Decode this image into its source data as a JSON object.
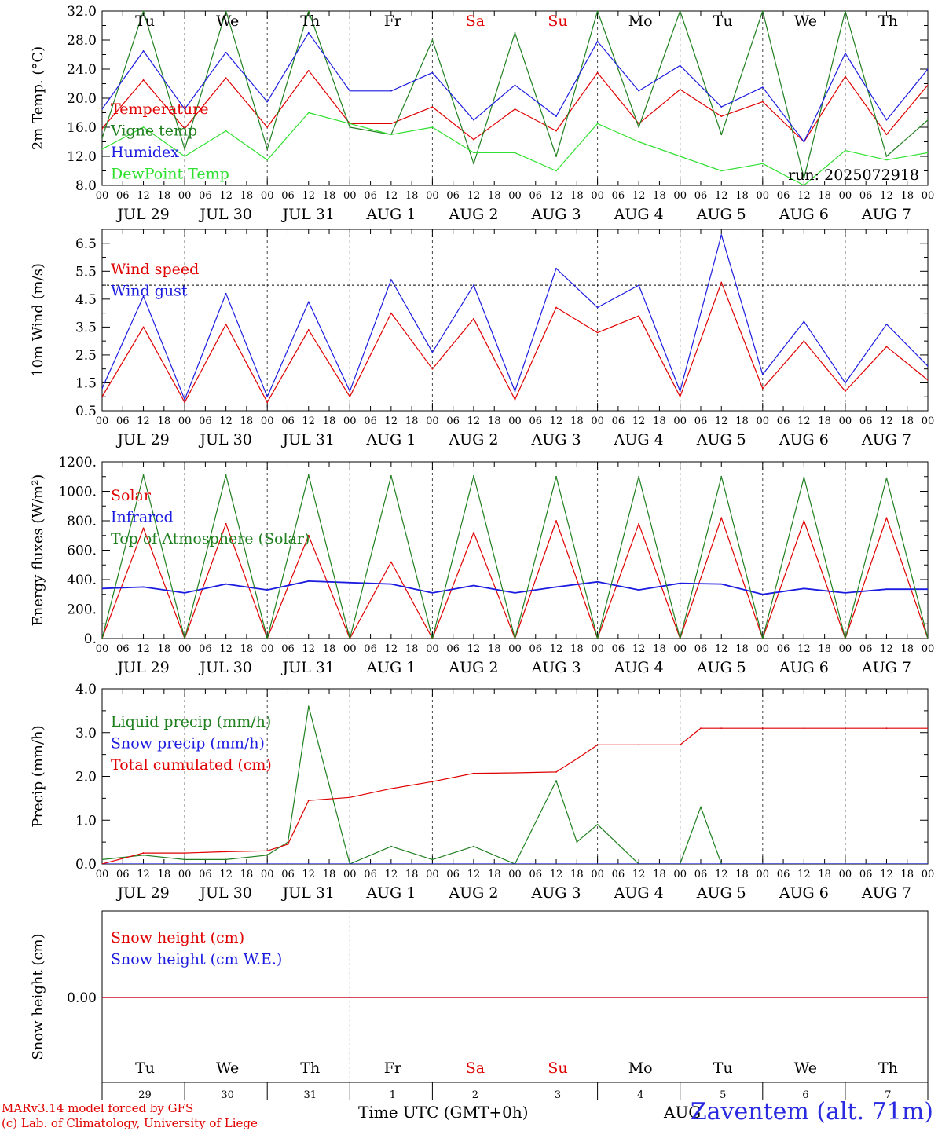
{
  "footer": {
    "model_credit": "MARv3.14 model forced by GFS",
    "lab_credit": "(c) Lab. of Climatology, University of Liege",
    "xlabel": "Time UTC (GMT+0h)",
    "month": "AUG",
    "station": "Zaventem (alt. 71m)"
  },
  "chart_data": [
    {
      "id": "temp",
      "type": "line",
      "ylabel": "2m Temp. (°C)",
      "ylim": [
        8.0,
        32.0
      ],
      "yticks": [
        "8.0",
        "12.0",
        "16.0",
        "20.0",
        "24.0",
        "28.0",
        "32.0"
      ],
      "annotation": "run: 2025072918",
      "weekday_labels": [
        "Tu",
        "We",
        "Th",
        "Fr",
        "Sa",
        "Su",
        "Mo",
        "Tu",
        "We",
        "Th"
      ],
      "weekday_colors": [
        "#000",
        "#000",
        "#000",
        "#000",
        "#e00000",
        "#e00000",
        "#000",
        "#000",
        "#000",
        "#000"
      ],
      "x_hours": [
        0,
        12,
        24,
        36,
        48,
        60,
        72,
        84,
        96,
        108,
        120,
        132,
        144,
        156,
        168,
        180,
        192,
        204,
        216,
        228,
        240
      ],
      "series": [
        {
          "name": "Temperature",
          "color": "#e00000",
          "values": [
            15.8,
            22.5,
            15.8,
            22.8,
            16.0,
            23.8,
            16.5,
            16.5,
            18.8,
            14.3,
            18.5,
            15.5,
            23.5,
            16.5,
            21.2,
            17.5,
            19.5,
            14.0,
            23.0,
            15.0,
            21.8
          ]
        },
        {
          "name": "Vigne temp",
          "color": "#208020",
          "values": [
            14.5,
            32.0,
            13.0,
            32.0,
            13.0,
            32.0,
            16.0,
            15.0,
            28.0,
            11.0,
            29.0,
            12.0,
            32.0,
            16.0,
            32.0,
            15.0,
            32.0,
            9.0,
            32.0,
            12.0,
            17.0
          ]
        },
        {
          "name": "Humidex",
          "color": "#1c1ce0",
          "values": [
            18.5,
            26.5,
            18.5,
            26.3,
            19.5,
            29.0,
            21.0,
            21.0,
            23.5,
            17.0,
            21.8,
            17.5,
            27.8,
            21.0,
            24.5,
            18.8,
            21.5,
            14.0,
            26.2,
            17.0,
            24.0
          ]
        },
        {
          "name": "DewPoint Temp",
          "color": "#30e030",
          "values": [
            13.0,
            16.0,
            12.0,
            15.5,
            11.5,
            18.0,
            16.5,
            15.0,
            16.0,
            12.5,
            12.5,
            10.0,
            16.5,
            14.0,
            12.0,
            10.0,
            11.0,
            8.0,
            12.8,
            11.5,
            12.5
          ]
        }
      ]
    },
    {
      "id": "wind",
      "type": "line",
      "ylabel": "10m Wind (m/s)",
      "ylim": [
        0.5,
        7.0
      ],
      "yticks": [
        "0.5",
        "1.5",
        "2.5",
        "3.5",
        "4.5",
        "5.5",
        "6.5"
      ],
      "reference_line": 5.0,
      "x_hours": [
        0,
        12,
        24,
        36,
        48,
        60,
        72,
        84,
        96,
        108,
        120,
        132,
        144,
        156,
        168,
        180,
        192,
        204,
        216,
        228,
        240
      ],
      "series": [
        {
          "name": "Wind speed",
          "color": "#e00000",
          "values": [
            1.0,
            3.5,
            0.8,
            3.6,
            0.8,
            3.4,
            1.0,
            4.0,
            2.0,
            3.8,
            0.9,
            4.2,
            3.3,
            3.9,
            1.0,
            5.1,
            1.3,
            3.0,
            1.2,
            2.8,
            1.6
          ]
        },
        {
          "name": "Wind gust",
          "color": "#1c1ce0",
          "values": [
            1.3,
            4.6,
            0.9,
            4.7,
            1.0,
            4.4,
            1.2,
            5.2,
            2.6,
            5.0,
            1.2,
            5.6,
            4.2,
            5.0,
            1.2,
            6.8,
            1.8,
            3.7,
            1.5,
            3.6,
            2.1
          ]
        }
      ]
    },
    {
      "id": "energy",
      "type": "line",
      "ylabel": "Energy fluxes (W/m²)",
      "ylim": [
        0,
        1200
      ],
      "yticks": [
        "0.",
        "200.",
        "400.",
        "600.",
        "800.",
        "1000.",
        "1200."
      ],
      "x_hours": [
        0,
        12,
        24,
        36,
        48,
        60,
        72,
        84,
        96,
        108,
        120,
        132,
        144,
        156,
        168,
        180,
        192,
        204,
        216,
        228,
        240
      ],
      "series": [
        {
          "name": "Solar",
          "color": "#e00000",
          "values": [
            0,
            750,
            0,
            780,
            0,
            700,
            0,
            520,
            0,
            720,
            0,
            800,
            0,
            780,
            0,
            820,
            0,
            800,
            0,
            820,
            0
          ]
        },
        {
          "name": "Infrared",
          "color": "#1c1ce0",
          "values": [
            340,
            350,
            310,
            370,
            330,
            390,
            380,
            370,
            310,
            360,
            310,
            350,
            385,
            330,
            375,
            370,
            300,
            340,
            310,
            335,
            335
          ]
        },
        {
          "name": "Top of Atmosphere (Solar)",
          "color": "#208020",
          "values": [
            0,
            1110,
            0,
            1110,
            0,
            1110,
            0,
            1105,
            0,
            1105,
            0,
            1100,
            0,
            1100,
            0,
            1100,
            0,
            1095,
            0,
            1090,
            0
          ]
        }
      ]
    },
    {
      "id": "precip",
      "type": "line",
      "ylabel": "Precip (mm/h)",
      "ylim": [
        0.0,
        4.0
      ],
      "yticks": [
        "0.0",
        "1.0",
        "2.0",
        "3.0",
        "4.0"
      ],
      "x_hours": [
        0,
        12,
        24,
        36,
        48,
        54,
        60,
        72,
        84,
        96,
        108,
        120,
        132,
        138,
        144,
        156,
        168,
        174,
        180,
        192,
        204,
        216,
        228,
        240
      ],
      "series": [
        {
          "name": "Liquid precip (mm/h)",
          "color": "#208020",
          "values": [
            0.1,
            0.2,
            0.1,
            0.1,
            0.2,
            0.5,
            3.6,
            0.0,
            0.4,
            0.1,
            0.4,
            0.0,
            1.9,
            0.5,
            0.9,
            0.0,
            0.0,
            1.3,
            0.0,
            0.0,
            0.0,
            0.0,
            0.0,
            0.0
          ]
        },
        {
          "name": "Snow precip (mm/h)",
          "color": "#1c1ce0",
          "values": [
            0,
            0,
            0,
            0,
            0,
            0,
            0,
            0,
            0,
            0,
            0,
            0,
            0,
            0,
            0,
            0,
            0,
            0,
            0,
            0,
            0,
            0,
            0,
            0
          ]
        },
        {
          "name": "Total cumulated (cm)",
          "color": "#e00000",
          "values": [
            0.0,
            0.25,
            0.25,
            0.28,
            0.3,
            0.45,
            1.45,
            1.52,
            1.72,
            1.88,
            2.07,
            2.08,
            2.1,
            2.4,
            2.72,
            2.72,
            2.72,
            3.1,
            3.1,
            3.1,
            3.1,
            3.1,
            3.1,
            3.1
          ]
        }
      ]
    },
    {
      "id": "snow",
      "type": "line",
      "ylabel": "Snow height (cm)",
      "yticks": [
        "0.00"
      ],
      "weekday_labels": [
        "Tu",
        "We",
        "Th",
        "Fr",
        "Sa",
        "Su",
        "Mo",
        "Tu",
        "We",
        "Th"
      ],
      "weekday_colors": [
        "#000",
        "#000",
        "#000",
        "#000",
        "#e00000",
        "#e00000",
        "#000",
        "#000",
        "#000",
        "#000"
      ],
      "day_numbers": [
        "29",
        "30",
        "31",
        "1",
        "2",
        "3",
        "4",
        "5",
        "6",
        "7"
      ],
      "series": [
        {
          "name": "Snow height (cm)",
          "color": "#e00000",
          "values": [
            0,
            0
          ]
        },
        {
          "name": "Snow height (cm W.E.)",
          "color": "#1c1ce0",
          "values": [
            0,
            0
          ]
        }
      ]
    }
  ],
  "date_labels": [
    "JUL 29",
    "JUL 30",
    "JUL 31",
    "AUG  1",
    "AUG  2",
    "AUG  3",
    "AUG  4",
    "AUG  5",
    "AUG  6",
    "AUG  7"
  ],
  "hour_labels": [
    "00",
    "06",
    "12",
    "18"
  ]
}
